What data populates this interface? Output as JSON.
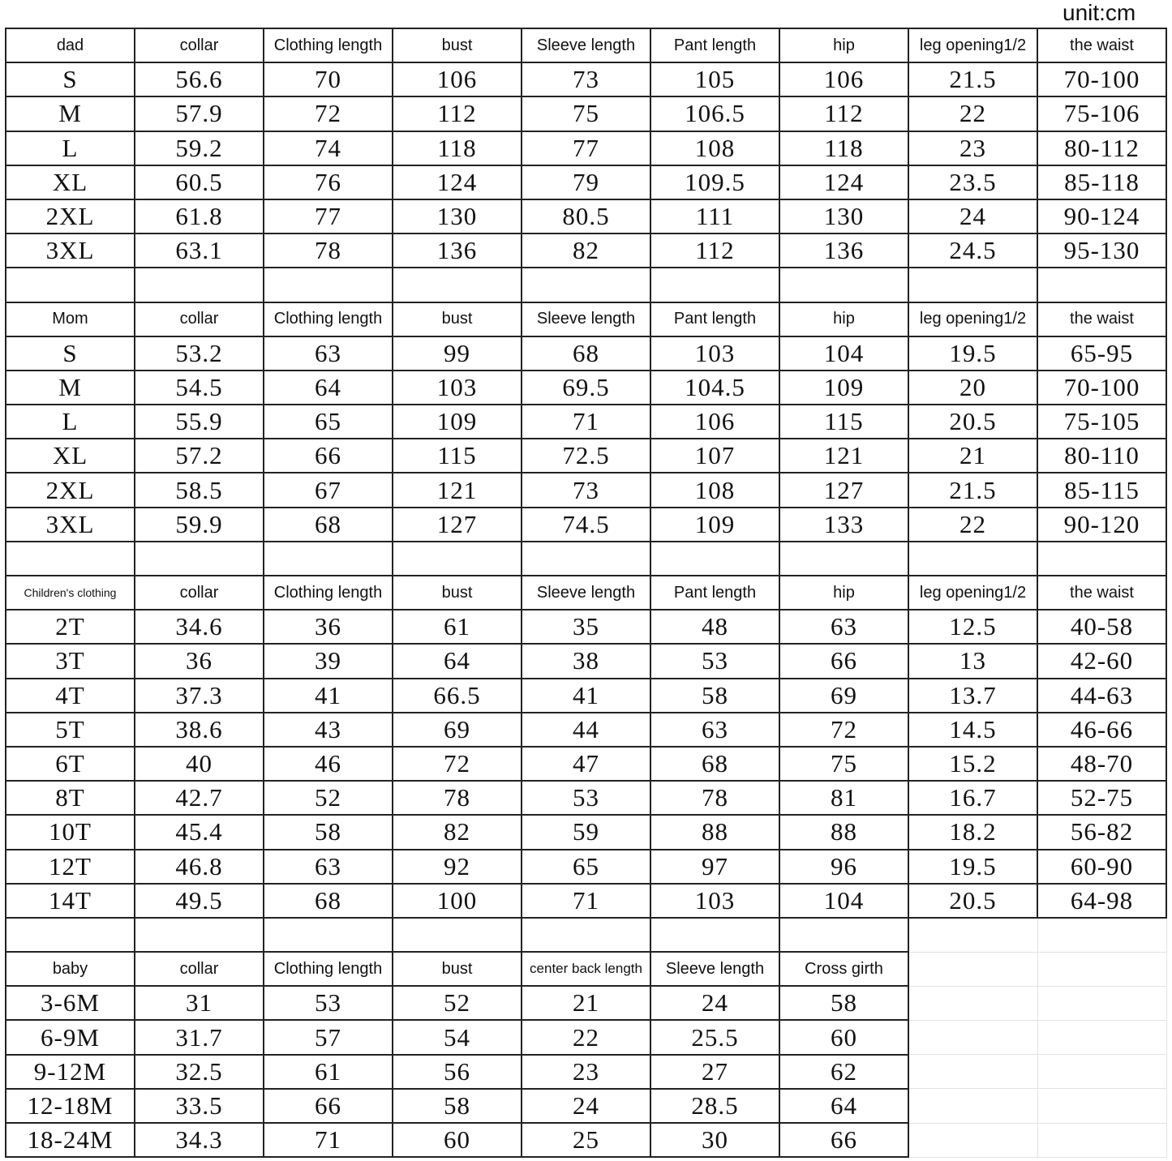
{
  "unit_label": "unit:cm",
  "sections": [
    {
      "header": [
        "dad",
        "collar",
        "Clothing length",
        "bust",
        "Sleeve length",
        "Pant length",
        "hip",
        "leg opening1/2",
        "the waist"
      ],
      "rows": [
        [
          "S",
          "56.6",
          "70",
          "106",
          "73",
          "105",
          "106",
          "21.5",
          "70-100"
        ],
        [
          "M",
          "57.9",
          "72",
          "112",
          "75",
          "106.5",
          "112",
          "22",
          "75-106"
        ],
        [
          "L",
          "59.2",
          "74",
          "118",
          "77",
          "108",
          "118",
          "23",
          "80-112"
        ],
        [
          "XL",
          "60.5",
          "76",
          "124",
          "79",
          "109.5",
          "124",
          "23.5",
          "85-118"
        ],
        [
          "2XL",
          "61.8",
          "77",
          "130",
          "80.5",
          "111",
          "130",
          "24",
          "90-124"
        ],
        [
          "3XL",
          "63.1",
          "78",
          "136",
          "82",
          "112",
          "136",
          "24.5",
          "95-130"
        ]
      ]
    },
    {
      "header": [
        "Mom",
        "collar",
        "Clothing length",
        "bust",
        "Sleeve length",
        "Pant length",
        "hip",
        "leg opening1/2",
        "the waist"
      ],
      "rows": [
        [
          "S",
          "53.2",
          "63",
          "99",
          "68",
          "103",
          "104",
          "19.5",
          "65-95"
        ],
        [
          "M",
          "54.5",
          "64",
          "103",
          "69.5",
          "104.5",
          "109",
          "20",
          "70-100"
        ],
        [
          "L",
          "55.9",
          "65",
          "109",
          "71",
          "106",
          "115",
          "20.5",
          "75-105"
        ],
        [
          "XL",
          "57.2",
          "66",
          "115",
          "72.5",
          "107",
          "121",
          "21",
          "80-110"
        ],
        [
          "2XL",
          "58.5",
          "67",
          "121",
          "73",
          "108",
          "127",
          "21.5",
          "85-115"
        ],
        [
          "3XL",
          "59.9",
          "68",
          "127",
          "74.5",
          "109",
          "133",
          "22",
          "90-120"
        ]
      ]
    },
    {
      "header": [
        "Children's clothing",
        "collar",
        "Clothing length",
        "bust",
        "Sleeve length",
        "Pant length",
        "hip",
        "leg opening1/2",
        "the waist"
      ],
      "rows": [
        [
          "2T",
          "34.6",
          "36",
          "61",
          "35",
          "48",
          "63",
          "12.5",
          "40-58"
        ],
        [
          "3T",
          "36",
          "39",
          "64",
          "38",
          "53",
          "66",
          "13",
          "42-60"
        ],
        [
          "4T",
          "37.3",
          "41",
          "66.5",
          "41",
          "58",
          "69",
          "13.7",
          "44-63"
        ],
        [
          "5T",
          "38.6",
          "43",
          "69",
          "44",
          "63",
          "72",
          "14.5",
          "46-66"
        ],
        [
          "6T",
          "40",
          "46",
          "72",
          "47",
          "68",
          "75",
          "15.2",
          "48-70"
        ],
        [
          "8T",
          "42.7",
          "52",
          "78",
          "53",
          "78",
          "81",
          "16.7",
          "52-75"
        ],
        [
          "10T",
          "45.4",
          "58",
          "82",
          "59",
          "88",
          "88",
          "18.2",
          "56-82"
        ],
        [
          "12T",
          "46.8",
          "63",
          "92",
          "65",
          "97",
          "96",
          "19.5",
          "60-90"
        ],
        [
          "14T",
          "49.5",
          "68",
          "100",
          "71",
          "103",
          "104",
          "20.5",
          "64-98"
        ]
      ]
    },
    {
      "header": [
        "baby",
        "collar",
        "Clothing length",
        "bust",
        "center back length",
        "Sleeve length",
        "Cross girth"
      ],
      "rows": [
        [
          "3-6M",
          "31",
          "53",
          "52",
          "21",
          "24",
          "58"
        ],
        [
          "6-9M",
          "31.7",
          "57",
          "54",
          "22",
          "25.5",
          "60"
        ],
        [
          "9-12M",
          "32.5",
          "61",
          "56",
          "23",
          "27",
          "62"
        ],
        [
          "12-18M",
          "33.5",
          "66",
          "58",
          "24",
          "28.5",
          "64"
        ],
        [
          "18-24M",
          "34.3",
          "71",
          "60",
          "25",
          "30",
          "66"
        ]
      ]
    }
  ]
}
